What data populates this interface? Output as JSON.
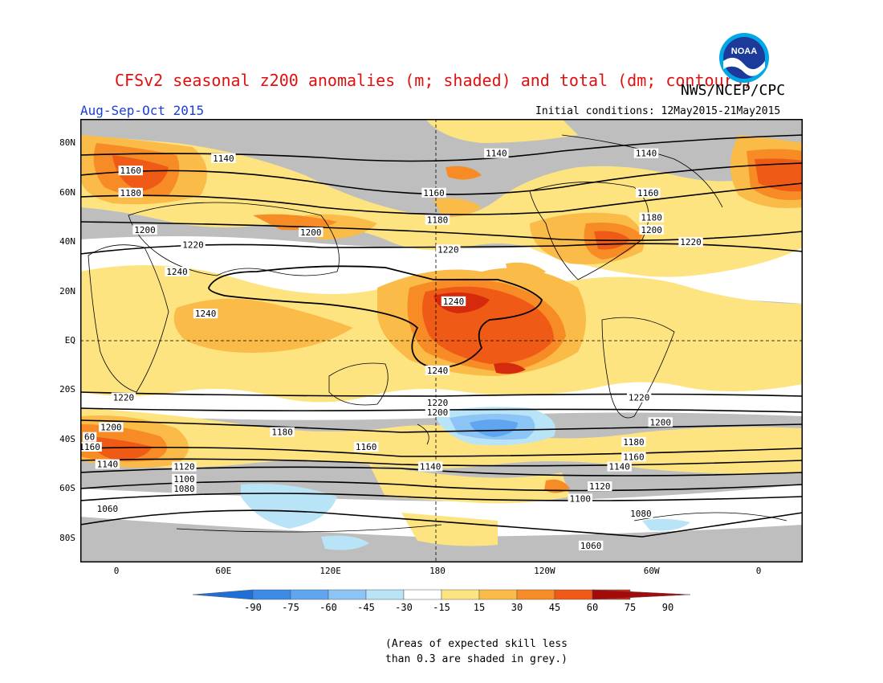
{
  "header": {
    "title": "CFSv2 seasonal z200 anomalies (m; shaded) and total (dm; contours)",
    "organization": "NWS/NCEP/CPC",
    "season": "Aug-Sep-Oct 2015",
    "initial_conditions": "Initial conditions: 12May2015-21May2015",
    "logo_text": "NOAA"
  },
  "map": {
    "projection": "cylindrical equidistant",
    "lat_labels": [
      "80N",
      "60N",
      "40N",
      "20N",
      "EQ",
      "20S",
      "40S",
      "60S",
      "80S"
    ],
    "lat_values": [
      80,
      60,
      40,
      20,
      0,
      -20,
      -40,
      -60,
      -80
    ],
    "lon_labels": [
      "0",
      "60E",
      "120E",
      "180",
      "120W",
      "60W",
      "0"
    ],
    "lon_values": [
      0,
      60,
      120,
      180,
      240,
      300,
      360
    ],
    "contour_labels": [
      {
        "text": "1140",
        "lon": 60,
        "lat": 74
      },
      {
        "text": "1140",
        "lon": 213,
        "lat": 76
      },
      {
        "text": "1140",
        "lon": 297,
        "lat": 76
      },
      {
        "text": "1160",
        "lon": 8,
        "lat": 69
      },
      {
        "text": "1180",
        "lon": 8,
        "lat": 60
      },
      {
        "text": "1160",
        "lon": 178,
        "lat": 60
      },
      {
        "text": "1180",
        "lon": 180,
        "lat": 49
      },
      {
        "text": "1160",
        "lon": 298,
        "lat": 60
      },
      {
        "text": "1180",
        "lon": 300,
        "lat": 50
      },
      {
        "text": "1200",
        "lon": 300,
        "lat": 45
      },
      {
        "text": "1200",
        "lon": 16,
        "lat": 45
      },
      {
        "text": "1200",
        "lon": 109,
        "lat": 44
      },
      {
        "text": "1220",
        "lon": 43,
        "lat": 39
      },
      {
        "text": "1220",
        "lon": 186,
        "lat": 37
      },
      {
        "text": "1220",
        "lon": 322,
        "lat": 40
      },
      {
        "text": "1240",
        "lon": 34,
        "lat": 28
      },
      {
        "text": "1240",
        "lon": 50,
        "lat": 11
      },
      {
        "text": "1240",
        "lon": 189,
        "lat": 16
      },
      {
        "text": "1240",
        "lon": 180,
        "lat": -12
      },
      {
        "text": "1220",
        "lon": 4,
        "lat": -23
      },
      {
        "text": "1220",
        "lon": 180,
        "lat": -25
      },
      {
        "text": "1220",
        "lon": 293,
        "lat": -23
      },
      {
        "text": "1200",
        "lon": 180,
        "lat": -29
      },
      {
        "text": "1200",
        "lon": -3,
        "lat": -35
      },
      {
        "text": "1200",
        "lon": 305,
        "lat": -33
      },
      {
        "text": "1180",
        "lon": 93,
        "lat": -37
      },
      {
        "text": "1160",
        "lon": 140,
        "lat": -43
      },
      {
        "text": "1180",
        "lon": 290,
        "lat": -41
      },
      {
        "text": "1160",
        "lon": 290,
        "lat": -47
      },
      {
        "text": "1140",
        "lon": -5,
        "lat": -50
      },
      {
        "text": "1140",
        "lon": 176,
        "lat": -51
      },
      {
        "text": "1140",
        "lon": 282,
        "lat": -51
      },
      {
        "text": "1120",
        "lon": 38,
        "lat": -51
      },
      {
        "text": "1100",
        "lon": 38,
        "lat": -56
      },
      {
        "text": "1080",
        "lon": 38,
        "lat": -60
      },
      {
        "text": "1120",
        "lon": 271,
        "lat": -59
      },
      {
        "text": "1100",
        "lon": 260,
        "lat": -64
      },
      {
        "text": "1080",
        "lon": 294,
        "lat": -70
      },
      {
        "text": "1060",
        "lon": -5,
        "lat": -68
      },
      {
        "text": "1060",
        "lon": 266,
        "lat": -83
      },
      {
        "text": "60",
        "lon": -15,
        "lat": -39
      },
      {
        "text": "1160",
        "lon": -15,
        "lat": -43
      }
    ]
  },
  "colorbar": {
    "ticks": [
      "-90",
      "-75",
      "-60",
      "-45",
      "-30",
      "-15",
      "15",
      "30",
      "45",
      "60",
      "75",
      "90"
    ],
    "colors": [
      "#1e6fd8",
      "#3b8ae6",
      "#5fa5f0",
      "#8cc5f5",
      "#b9e4f8",
      "#ffffff",
      "#fde481",
      "#fbbb48",
      "#f78c26",
      "#ef5a16",
      "#d62a0c",
      "#a50a0a"
    ],
    "grey": "#bebebe"
  },
  "footnote": {
    "line1": "(Areas of expected skill less",
    "line2": "than 0.3 are shaded in grey.)"
  },
  "colors": {
    "title": "#e01010",
    "season": "#1a3fd6",
    "contour": "#000000",
    "coast": "#000000"
  }
}
